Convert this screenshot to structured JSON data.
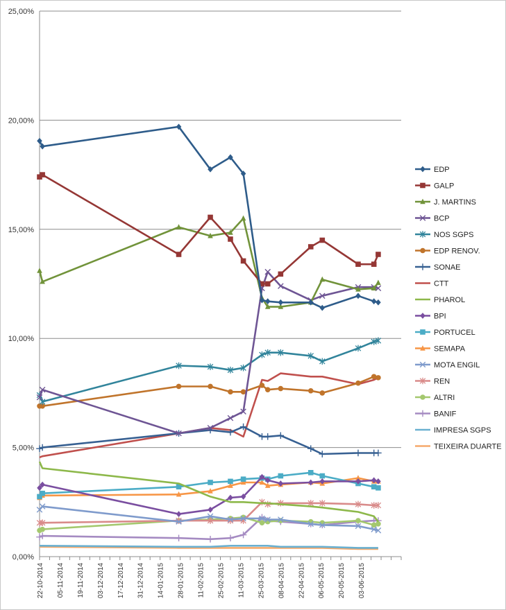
{
  "chart_data": {
    "type": "line",
    "title": "",
    "xlabel": "",
    "ylabel": "",
    "ylim": [
      0,
      0.25
    ],
    "y_ticks": [
      "0,00%",
      "5,00%",
      "10,00%",
      "15,00%",
      "20,00%",
      "25,00%"
    ],
    "x_range": [
      "2014-10-22",
      "2015-07-01"
    ],
    "x_ticks": [
      "22-10-2014",
      "05-11-2014",
      "19-11-2014",
      "03-12-2014",
      "17-12-2014",
      "31-12-2014",
      "14-01-2015",
      "28-01-2015",
      "11-02-2015",
      "25-02-2015",
      "11-03-2015",
      "25-03-2015",
      "08-04-2015",
      "22-04-2015",
      "06-05-2015",
      "20-05-2015",
      "03-06-2015"
    ],
    "grid": "horizontal",
    "legend_position": "right",
    "x": [
      "2014-10-22",
      "2014-10-24",
      "2015-01-27",
      "2015-02-18",
      "2015-03-04",
      "2015-03-13",
      "2015-03-26",
      "2015-03-30",
      "2015-04-08",
      "2015-04-29",
      "2015-05-07",
      "2015-06-01",
      "2015-06-12",
      "2015-06-15"
    ],
    "series": [
      {
        "name": "EDP",
        "color": "#2e5c8a",
        "marker": "diamond",
        "values": [
          0.1905,
          0.188,
          0.197,
          0.1775,
          0.183,
          0.1755,
          0.1175,
          0.117,
          0.1165,
          0.1165,
          0.114,
          0.1195,
          0.117,
          0.1165
        ]
      },
      {
        "name": "GALP",
        "color": "#953735",
        "marker": "square",
        "values": [
          0.174,
          0.175,
          0.1385,
          0.1555,
          0.1455,
          0.1355,
          0.125,
          0.125,
          0.1295,
          0.142,
          0.145,
          0.134,
          0.134,
          0.1385
        ]
      },
      {
        "name": "J. MARTINS",
        "color": "#71933a",
        "marker": "triangle",
        "values": [
          0.131,
          0.126,
          0.151,
          0.147,
          0.1485,
          0.155,
          0.1185,
          0.1145,
          0.1145,
          0.1165,
          0.127,
          0.1225,
          0.123,
          0.1255
        ]
      },
      {
        "name": "BCP",
        "color": "#6e5594",
        "marker": "x",
        "values": [
          0.073,
          0.0765,
          0.0565,
          0.059,
          0.0635,
          0.0665,
          0.123,
          0.1305,
          0.124,
          0.1175,
          0.1195,
          0.1235,
          0.1235,
          0.123
        ]
      },
      {
        "name": "NOS SGPS",
        "color": "#31849b",
        "marker": "star",
        "values": [
          0.074,
          0.071,
          0.0875,
          0.087,
          0.0855,
          0.0865,
          0.0925,
          0.0935,
          0.0935,
          0.092,
          0.0895,
          0.0955,
          0.0985,
          0.099
        ]
      },
      {
        "name": "EDP RENOV.",
        "color": "#c0742b",
        "marker": "circle",
        "values": [
          0.069,
          0.069,
          0.078,
          0.078,
          0.0755,
          0.0755,
          0.0785,
          0.0765,
          0.077,
          0.076,
          0.075,
          0.0795,
          0.0825,
          0.082
        ]
      },
      {
        "name": "SONAE",
        "color": "#376092",
        "marker": "plus",
        "values": [
          0.0495,
          0.05,
          0.0565,
          0.058,
          0.057,
          0.0595,
          0.055,
          0.055,
          0.0555,
          0.0495,
          0.047,
          0.0475,
          0.0475,
          0.0475
        ]
      },
      {
        "name": "CTT",
        "color": "#c0504d",
        "marker": "none",
        "values": [
          0.0455,
          0.046,
          0.0565,
          0.059,
          0.058,
          0.055,
          0.081,
          0.0805,
          0.084,
          0.0825,
          0.0825,
          0.079,
          0.081,
          0.082
        ]
      },
      {
        "name": "PHAROL",
        "color": "#8db84a",
        "marker": "none",
        "values": [
          0.0435,
          0.0405,
          0.0335,
          0.0275,
          0.025,
          0.025,
          0.0245,
          0.0245,
          0.024,
          0.023,
          0.0225,
          0.0205,
          0.0185,
          0.016
        ]
      },
      {
        "name": "BPI",
        "color": "#7a4ea0",
        "marker": "diamond",
        "values": [
          0.0315,
          0.033,
          0.0195,
          0.0215,
          0.027,
          0.0275,
          0.0365,
          0.035,
          0.0335,
          0.034,
          0.0345,
          0.0345,
          0.035,
          0.0345
        ]
      },
      {
        "name": "PORTUCEL",
        "color": "#4bacc6",
        "marker": "square",
        "values": [
          0.0275,
          0.029,
          0.032,
          0.034,
          0.0345,
          0.0355,
          0.036,
          0.0355,
          0.037,
          0.0385,
          0.037,
          0.0335,
          0.032,
          0.0315
        ]
      },
      {
        "name": "SEMAPA",
        "color": "#f79646",
        "marker": "triangle",
        "values": [
          0.027,
          0.028,
          0.0285,
          0.03,
          0.0325,
          0.034,
          0.034,
          0.0325,
          0.033,
          0.034,
          0.0335,
          0.036,
          0.0345,
          0.0345
        ]
      },
      {
        "name": "MOTA ENGIL",
        "color": "#7f9bcc",
        "marker": "x",
        "values": [
          0.0215,
          0.023,
          0.016,
          0.0185,
          0.017,
          0.0175,
          0.0175,
          0.017,
          0.017,
          0.015,
          0.0145,
          0.014,
          0.0125,
          0.012
        ]
      },
      {
        "name": "REN",
        "color": "#d98b8a",
        "marker": "star",
        "values": [
          0.0155,
          0.0155,
          0.0165,
          0.0165,
          0.0165,
          0.0165,
          0.025,
          0.024,
          0.0245,
          0.0245,
          0.0245,
          0.024,
          0.0235,
          0.0235
        ]
      },
      {
        "name": "ALTRI",
        "color": "#a4c86e",
        "marker": "circle",
        "values": [
          0.012,
          0.0125,
          0.0165,
          0.017,
          0.0175,
          0.018,
          0.0155,
          0.016,
          0.0165,
          0.016,
          0.0155,
          0.0165,
          0.0145,
          0.015
        ]
      },
      {
        "name": "BANIF",
        "color": "#a58bc2",
        "marker": "plus",
        "values": [
          0.009,
          0.0095,
          0.0085,
          0.008,
          0.0085,
          0.01,
          0.018,
          0.0165,
          0.016,
          0.015,
          0.0145,
          0.016,
          0.0165,
          0.0165
        ]
      },
      {
        "name": "IMPRESA SGPS",
        "color": "#6ab0d0",
        "marker": "none",
        "values": [
          0.005,
          0.005,
          0.0045,
          0.0045,
          0.005,
          0.005,
          0.005,
          0.005,
          0.0045,
          0.0045,
          0.0045,
          0.004,
          0.004,
          0.004
        ]
      },
      {
        "name": "TEIXEIRA DUARTE",
        "color": "#f5a96b",
        "marker": "none",
        "values": [
          0.0045,
          0.0045,
          0.004,
          0.004,
          0.004,
          0.004,
          0.004,
          0.004,
          0.004,
          0.004,
          0.004,
          0.0035,
          0.0035,
          0.0035
        ]
      }
    ]
  }
}
